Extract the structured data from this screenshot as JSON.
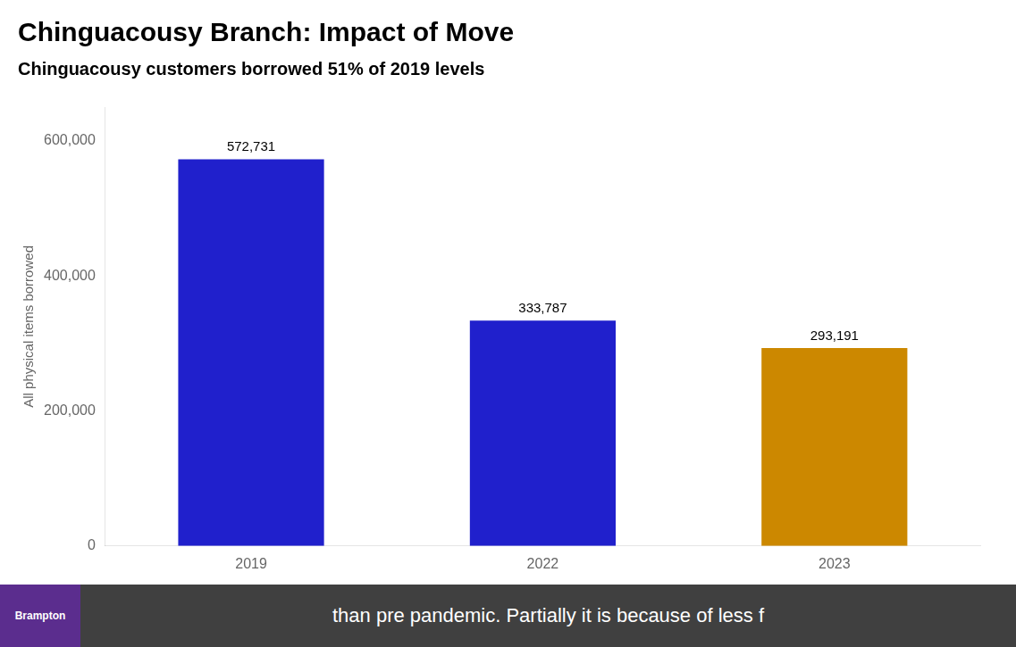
{
  "chart_data": {
    "type": "bar",
    "title": "Chinguacousy Branch: Impact of Move",
    "subtitle": "Chinguacousy customers borrowed 51% of 2019 levels",
    "ylabel": "All physical items borrowed",
    "categories": [
      "2019",
      "2022",
      "2023"
    ],
    "values": [
      572731,
      333787,
      293191
    ],
    "value_labels": [
      "572,731",
      "333,787",
      "293,191"
    ],
    "data_labels": true,
    "colors": [
      "#2020cc",
      "#2020cc",
      "#cc8800"
    ],
    "ylim": [
      0,
      650000
    ],
    "yticks": [
      0,
      {
        "value": 200000,
        "label": "200,000"
      },
      {
        "value": 400000,
        "label": "400,000"
      },
      {
        "value": 600000,
        "label": "600,000"
      }
    ],
    "grid": false,
    "annotations": [
      "than pre pandemic. Partially it is because of less f",
      "Brampton"
    ]
  }
}
